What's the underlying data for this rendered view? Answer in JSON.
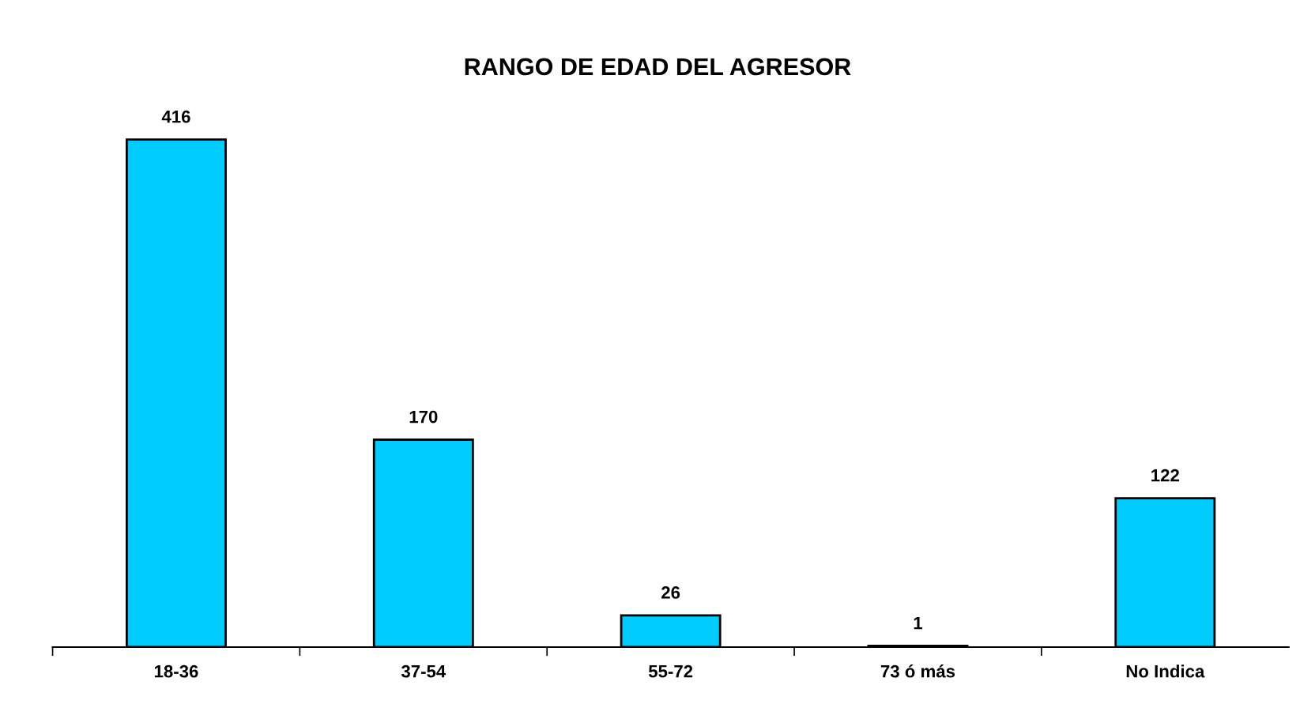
{
  "chart_data": {
    "type": "bar",
    "title": "RANGO DE EDAD DEL AGRESOR",
    "categories": [
      "18-36",
      "37-54",
      "55-72",
      "73 ó más",
      "No Indica"
    ],
    "values": [
      416,
      170,
      26,
      1,
      122
    ],
    "color": "#00ccff",
    "data_labels": true,
    "grid": false,
    "legend": false
  }
}
